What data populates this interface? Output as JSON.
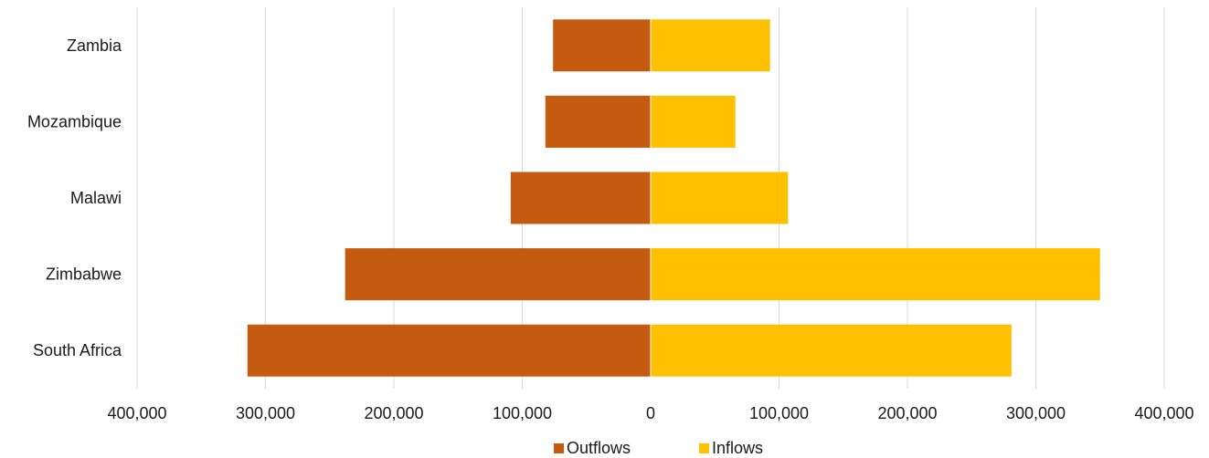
{
  "chart_data": {
    "type": "bar",
    "orientation": "horizontal",
    "layout": "diverging",
    "categories": [
      "Zambia",
      "Mozambique",
      "Malawi",
      "Zimbabwe",
      "South Africa"
    ],
    "series": [
      {
        "name": "Outflows",
        "values": [
          -76000,
          -82000,
          -109000,
          -238000,
          -314000
        ],
        "color": "#C55A11"
      },
      {
        "name": "Inflows",
        "values": [
          93000,
          66000,
          107000,
          350000,
          281000
        ],
        "color": "#FFC000"
      }
    ],
    "xlim": [
      -400000,
      400000
    ],
    "x_ticks": [
      -400000,
      -300000,
      -200000,
      -100000,
      0,
      100000,
      200000,
      300000,
      400000
    ],
    "x_tick_labels": [
      "400,000",
      "300,000",
      "200,000",
      "100,000",
      "0",
      "100,000",
      "200,000",
      "300,000",
      "400,000"
    ],
    "title": "",
    "xlabel": "",
    "ylabel": "",
    "grid": "vertical",
    "legend": "bottom-center"
  },
  "colors": {
    "outflows": "#C55A11",
    "inflows": "#FFC000",
    "grid": "#D9D9D9",
    "text": "#1a1a1a"
  }
}
